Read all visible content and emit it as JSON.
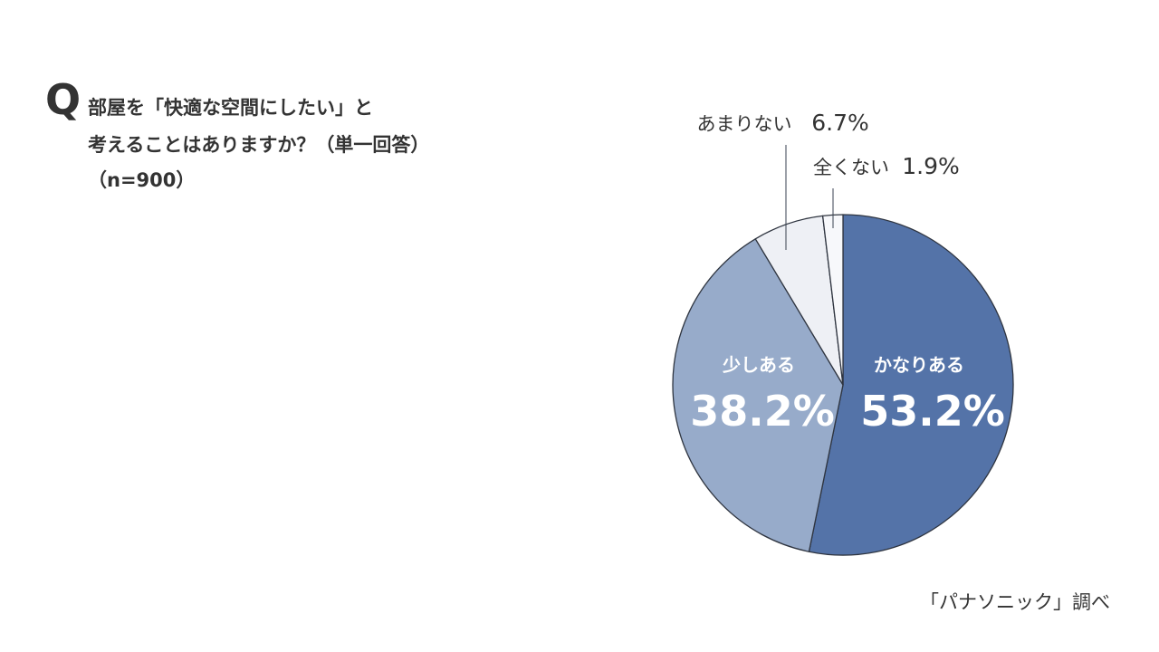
{
  "question": {
    "mark": "Q",
    "line1": "部屋を「快適な空間にしたい」と",
    "line2": "考えることはありますか？（単一回答）",
    "line3": "（n=900）"
  },
  "source": "「パナソニック」調べ",
  "chart_data": {
    "type": "pie",
    "start_angle_deg": 0,
    "direction": "clockwise",
    "slices": [
      {
        "label": "かなりある",
        "value": 53.2,
        "value_label": "53.2%",
        "color": "#5473a8",
        "label_position": "inside",
        "label_color": "#ffffff"
      },
      {
        "label": "少しある",
        "value": 38.2,
        "value_label": "38.2%",
        "color": "#97abca",
        "label_position": "inside",
        "label_color": "#ffffff"
      },
      {
        "label": "あまりない",
        "value": 6.7,
        "value_label": "6.7%",
        "color": "#eef0f5",
        "label_position": "outside",
        "label_color": "#333333"
      },
      {
        "label": "全くない",
        "value": 1.9,
        "value_label": "1.9%",
        "color": "#f7f8fb",
        "label_position": "outside",
        "label_color": "#333333"
      }
    ],
    "stroke_color": "#2f3540"
  }
}
